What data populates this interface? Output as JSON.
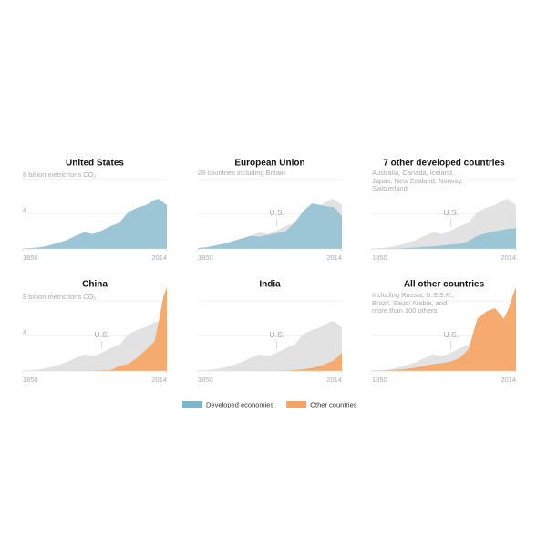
{
  "chart_data": {
    "type": "area",
    "x": [
      1850,
      1860,
      1870,
      1880,
      1890,
      1900,
      1910,
      1920,
      1930,
      1940,
      1950,
      1960,
      1970,
      1980,
      1990,
      2000,
      2005,
      2010,
      2014
    ],
    "xlim": [
      1850,
      2014
    ],
    "xticks": [
      1850,
      2014
    ],
    "ylim": [
      0,
      10
    ],
    "yticks": [
      4,
      {
        "value": 8,
        "label": "8 billion metric tons CO₂"
      }
    ],
    "grid": true,
    "reference_color": "#e2e2e2",
    "legend": [
      {
        "name": "Developed economies",
        "color": "#7fb5c9"
      },
      {
        "name": "Other countries",
        "color": "#f2a367"
      }
    ],
    "panels": [
      {
        "title": "United States",
        "color": "#9cc6d6",
        "ytick_labels": true,
        "values": [
          0.05,
          0.1,
          0.2,
          0.4,
          0.7,
          1.0,
          1.5,
          1.9,
          1.7,
          2.1,
          2.6,
          3.0,
          4.2,
          4.7,
          5.0,
          5.6,
          5.7,
          5.3,
          5.0
        ]
      },
      {
        "title": "European Union",
        "note": "28 countries including Britain",
        "reference": "U.S.",
        "color": "#9cc6d6",
        "ytick_labels": false,
        "values": [
          0.1,
          0.2,
          0.4,
          0.6,
          0.9,
          1.2,
          1.5,
          1.4,
          1.6,
          1.8,
          2.0,
          3.0,
          4.3,
          5.2,
          5.0,
          4.8,
          4.8,
          4.2,
          3.7
        ]
      },
      {
        "title": "7 other developed countries",
        "note": "Australia, Canada, Iceland, Japan, New Zealand, Norway, Switzerland",
        "reference": "U.S.",
        "color": "#9cc6d6",
        "ytick_labels": false,
        "values": [
          0.01,
          0.02,
          0.03,
          0.05,
          0.1,
          0.15,
          0.25,
          0.3,
          0.4,
          0.5,
          0.6,
          0.9,
          1.5,
          1.8,
          2.0,
          2.2,
          2.3,
          2.3,
          2.4
        ]
      },
      {
        "title": "China",
        "reference": "U.S.",
        "color": "#f5aa6f",
        "ytick_labels": true,
        "values": [
          0,
          0,
          0,
          0,
          0,
          0.01,
          0.02,
          0.03,
          0.05,
          0.08,
          0.1,
          0.6,
          0.8,
          1.5,
          2.4,
          3.4,
          5.8,
          8.5,
          9.6
        ]
      },
      {
        "title": "India",
        "reference": "U.S.",
        "color": "#f5aa6f",
        "ytick_labels": false,
        "values": [
          0,
          0,
          0,
          0,
          0,
          0.01,
          0.01,
          0.02,
          0.03,
          0.04,
          0.05,
          0.1,
          0.2,
          0.35,
          0.6,
          1.0,
          1.2,
          1.7,
          2.1
        ]
      },
      {
        "title": "All other countries",
        "note": "Including Russia, U.S.S.R., Brazil, Saudi Arabia, and more than 100 others",
        "reference": "U.S.",
        "color": "#f5aa6f",
        "ytick_labels": false,
        "values": [
          0.02,
          0.04,
          0.08,
          0.15,
          0.25,
          0.4,
          0.6,
          0.8,
          0.9,
          1.1,
          1.5,
          2.5,
          6.0,
          6.8,
          7.2,
          6.0,
          7.0,
          8.5,
          9.6
        ]
      }
    ]
  }
}
